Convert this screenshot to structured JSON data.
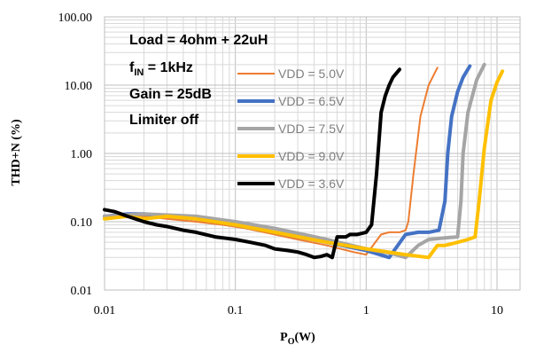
{
  "chart_data": {
    "type": "line",
    "title": "",
    "xlabel": "P",
    "xlabel_sub": "O",
    "xlabel_unit": "(W)",
    "ylabel": "THD+N (%)",
    "xscale": "log",
    "yscale": "log",
    "xlim": [
      0.01,
      15
    ],
    "ylim": [
      0.01,
      100
    ],
    "grid": true,
    "x_ticks": [
      "0.01",
      "0.1",
      "1",
      "10"
    ],
    "y_ticks": [
      "0.01",
      "0.10",
      "1.00",
      "10.00",
      "100.00"
    ],
    "annotations": [
      {
        "text": "Load = 4ohm + 22uH"
      },
      {
        "text": "f",
        "sub": "IN",
        "rest": " = 1kHz"
      },
      {
        "text": "Gain = 25dB"
      },
      {
        "text": "Limiter off"
      }
    ],
    "legend_position": "center",
    "series": [
      {
        "name": "VDD = 5.0V",
        "color": "#ed7d31",
        "x": [
          0.01,
          0.015,
          0.02,
          0.03,
          0.05,
          0.08,
          0.12,
          0.2,
          0.3,
          0.5,
          0.8,
          1.0,
          1.3,
          1.5,
          1.8,
          2.0,
          2.1,
          2.3,
          2.6,
          3.0,
          3.5
        ],
        "y": [
          0.12,
          0.13,
          0.12,
          0.11,
          0.1,
          0.09,
          0.08,
          0.065,
          0.055,
          0.045,
          0.036,
          0.033,
          0.065,
          0.07,
          0.07,
          0.075,
          0.1,
          0.5,
          3.5,
          10,
          18
        ]
      },
      {
        "name": "VDD = 6.5V",
        "color": "#4472c4",
        "x": [
          0.01,
          0.015,
          0.02,
          0.05,
          0.1,
          0.2,
          0.5,
          1.0,
          1.5,
          2.0,
          2.5,
          3.0,
          3.6,
          4.0,
          4.2,
          4.5,
          5.0,
          5.5,
          6.2
        ],
        "y": [
          0.12,
          0.13,
          0.13,
          0.11,
          0.09,
          0.07,
          0.05,
          0.038,
          0.03,
          0.065,
          0.07,
          0.07,
          0.075,
          0.2,
          1.0,
          3.5,
          8,
          13,
          19
        ]
      },
      {
        "name": "VDD = 7.5V",
        "color": "#a5a5a5",
        "x": [
          0.01,
          0.02,
          0.05,
          0.1,
          0.2,
          0.5,
          1.0,
          1.5,
          2.0,
          2.5,
          3.0,
          4.0,
          5.0,
          5.3,
          5.5,
          6.0,
          7.0,
          8.0
        ],
        "y": [
          0.12,
          0.13,
          0.12,
          0.1,
          0.08,
          0.055,
          0.04,
          0.035,
          0.03,
          0.045,
          0.055,
          0.058,
          0.06,
          0.2,
          1.0,
          4.0,
          12,
          20
        ]
      },
      {
        "name": "VDD = 9.0V",
        "color": "#ffc000",
        "x": [
          0.01,
          0.015,
          0.02,
          0.03,
          0.05,
          0.1,
          0.2,
          0.5,
          1.0,
          2.0,
          3.0,
          3.5,
          4.0,
          5.0,
          6.0,
          6.8,
          7.3,
          8.0,
          9.0,
          10.0,
          11.0
        ],
        "y": [
          0.11,
          0.12,
          0.11,
          0.12,
          0.11,
          0.09,
          0.07,
          0.05,
          0.04,
          0.033,
          0.03,
          0.045,
          0.045,
          0.05,
          0.055,
          0.06,
          0.2,
          1.2,
          6,
          11,
          16
        ]
      },
      {
        "name": "VDD = 3.6V",
        "color": "#000000",
        "x": [
          0.01,
          0.012,
          0.015,
          0.02,
          0.025,
          0.03,
          0.04,
          0.05,
          0.07,
          0.1,
          0.13,
          0.17,
          0.2,
          0.25,
          0.3,
          0.35,
          0.4,
          0.45,
          0.5,
          0.55,
          0.6,
          0.65,
          0.7,
          0.75,
          0.85,
          1.0,
          1.1,
          1.2,
          1.3,
          1.4,
          1.5,
          1.6,
          1.8
        ],
        "y": [
          0.15,
          0.14,
          0.12,
          0.1,
          0.09,
          0.085,
          0.075,
          0.07,
          0.06,
          0.055,
          0.05,
          0.045,
          0.04,
          0.038,
          0.036,
          0.033,
          0.03,
          0.031,
          0.033,
          0.03,
          0.06,
          0.06,
          0.06,
          0.065,
          0.065,
          0.07,
          0.09,
          0.5,
          4.0,
          7.0,
          10,
          13,
          17
        ]
      }
    ]
  }
}
